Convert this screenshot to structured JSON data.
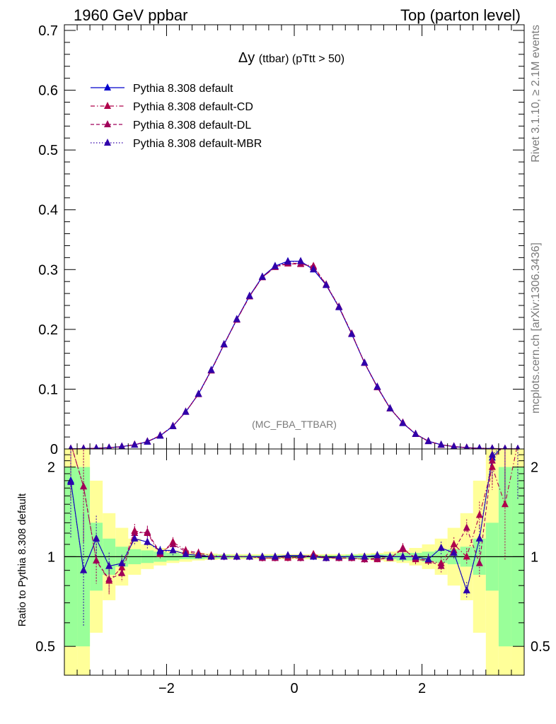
{
  "header": {
    "left": "1960 GeV ppbar",
    "right": "Top (parton level)"
  },
  "side": {
    "rivet": "Rivet 3.1.10, ≥ 2.1M events",
    "mcplots": "mcplots.cern.ch [arXiv:1306.3436]"
  },
  "watermark": "(MC_FBA_TTBAR)",
  "colors": {
    "default": "#0000cc",
    "cd": "#b0004a",
    "dl": "#a0005a",
    "mbr": "#3000aa",
    "band_inner": "#99ff99",
    "band_outer": "#ffff99"
  },
  "chart_data": [
    {
      "type": "line",
      "title": "Δy (ttbar) (pTtt > 50)",
      "xlabel": "",
      "ylabel": "",
      "xlim": [
        -3.6,
        3.6
      ],
      "ylim": [
        0,
        0.7
      ],
      "yticks": [
        "0",
        "0.1",
        "0.2",
        "0.3",
        "0.4",
        "0.5",
        "0.6",
        "0.7"
      ],
      "legend_position": "top-left",
      "x": [
        -3.5,
        -3.3,
        -3.1,
        -2.9,
        -2.7,
        -2.5,
        -2.3,
        -2.1,
        -1.9,
        -1.7,
        -1.5,
        -1.3,
        -1.1,
        -0.9,
        -0.7,
        -0.5,
        -0.3,
        -0.1,
        0.1,
        0.3,
        0.5,
        0.7,
        0.9,
        1.1,
        1.3,
        1.5,
        1.7,
        1.9,
        2.1,
        2.3,
        2.5,
        2.7,
        2.9,
        3.1,
        3.3,
        3.5
      ],
      "series": [
        {
          "name": "Pythia 8.308 default",
          "style": "solid",
          "values": [
            0.0003,
            0.0006,
            0.0012,
            0.0022,
            0.004,
            0.007,
            0.012,
            0.022,
            0.038,
            0.062,
            0.092,
            0.132,
            0.175,
            0.217,
            0.256,
            0.288,
            0.306,
            0.314,
            0.314,
            0.3,
            0.274,
            0.237,
            0.192,
            0.144,
            0.104,
            0.068,
            0.043,
            0.025,
            0.013,
            0.007,
            0.004,
            0.0022,
            0.0012,
            0.0006,
            0.0003,
            0.0001
          ]
        },
        {
          "name": "Pythia 8.308 default-CD",
          "style": "dashdot",
          "values": [
            0.0004,
            0.0007,
            0.0012,
            0.0021,
            0.0039,
            0.0072,
            0.0125,
            0.0225,
            0.0385,
            0.062,
            0.0915,
            0.131,
            0.1745,
            0.216,
            0.255,
            0.287,
            0.304,
            0.31,
            0.309,
            0.306,
            0.275,
            0.238,
            0.193,
            0.144,
            0.103,
            0.0675,
            0.044,
            0.025,
            0.013,
            0.0069,
            0.0041,
            0.0021,
            0.0011,
            0.0007,
            0.0004,
            0.0002
          ]
        },
        {
          "name": "Pythia 8.308 default-DL",
          "style": "dashed",
          "values": [
            0.0003,
            0.0006,
            0.0012,
            0.0021,
            0.0038,
            0.0071,
            0.0124,
            0.0224,
            0.0383,
            0.0622,
            0.0918,
            0.1315,
            0.1748,
            0.2165,
            0.2552,
            0.2872,
            0.3045,
            0.311,
            0.31,
            0.304,
            0.2745,
            0.2375,
            0.1925,
            0.1438,
            0.1035,
            0.0678,
            0.0438,
            0.0248,
            0.0128,
            0.0068,
            0.004,
            0.0021,
            0.0011,
            0.0007,
            0.0003,
            0.0001
          ]
        },
        {
          "name": "Pythia 8.308 default-MBR",
          "style": "dotted",
          "values": [
            0.0003,
            0.0005,
            0.0013,
            0.0021,
            0.0039,
            0.007,
            0.0122,
            0.0222,
            0.0382,
            0.0621,
            0.092,
            0.1318,
            0.1749,
            0.2168,
            0.2558,
            0.2876,
            0.3055,
            0.313,
            0.314,
            0.3005,
            0.2742,
            0.2372,
            0.1922,
            0.1441,
            0.1038,
            0.0679,
            0.0432,
            0.025,
            0.0129,
            0.0071,
            0.004,
            0.0017,
            0.0014,
            0.0007,
            0.0003,
            0.0001
          ]
        }
      ]
    },
    {
      "type": "line",
      "title": "",
      "xlabel": "",
      "ylabel": "Ratio to Pythia 8.308 default",
      "ylim": [
        0.4,
        2.3
      ],
      "scale": "log",
      "xticks": [
        "−2",
        "0",
        "2"
      ],
      "yticks": [
        "0.5",
        "1",
        "2"
      ],
      "series": [
        {
          "name": "Pythia 8.308 default",
          "values": [
            1.8,
            0.9,
            1.15,
            0.93,
            0.95,
            1.15,
            1.12,
            1.05,
            1.05,
            1.02,
            1.01,
            1.0,
            1.0,
            1.0,
            1.0,
            1.0,
            1.0,
            1.01,
            1.01,
            1.0,
            0.99,
            1.0,
            1.0,
            1.0,
            1.01,
            1.0,
            1.0,
            1.0,
            0.98,
            1.07,
            1.03,
            0.77,
            1.15,
            2.15,
            2.4,
            2.4
          ]
        },
        {
          "name": "Pythia 8.308 default-CD",
          "values": [
            2.4,
            1.72,
            0.97,
            0.83,
            0.92,
            1.22,
            1.2,
            1.02,
            1.12,
            1.05,
            1.03,
            1.01,
            1.0,
            1.0,
            1.0,
            0.99,
            0.99,
            0.99,
            0.99,
            1.02,
            0.99,
            0.99,
            0.99,
            0.98,
            0.98,
            0.99,
            1.07,
            0.98,
            0.97,
            0.95,
            1.1,
            1.0,
            1.38,
            2.0,
            1.5,
            2.4
          ]
        },
        {
          "name": "Pythia 8.308 default-DL",
          "values": [
            2.4,
            1.72,
            0.97,
            0.84,
            0.88,
            1.2,
            1.21,
            1.03,
            1.1,
            1.04,
            1.02,
            1.0,
            1.0,
            1.0,
            1.0,
            0.99,
            0.99,
            1.0,
            0.99,
            1.01,
            0.99,
            0.99,
            0.99,
            0.98,
            0.99,
            0.99,
            1.06,
            0.99,
            0.97,
            0.93,
            1.05,
            1.25,
            0.95,
            2.1,
            2.4,
            2.4
          ]
        },
        {
          "name": "Pythia 8.308 default-MBR",
          "values": [
            1.78,
            0.9,
            1.15,
            0.93,
            0.95,
            1.15,
            1.12,
            1.04,
            1.05,
            1.02,
            1.01,
            1.0,
            1.0,
            1.0,
            1.0,
            1.0,
            1.0,
            1.01,
            1.01,
            1.0,
            0.99,
            1.0,
            1.0,
            1.0,
            1.01,
            1.0,
            1.0,
            1.0,
            0.98,
            1.07,
            1.03,
            0.77,
            1.15,
            2.2,
            2.4,
            2.4
          ]
        }
      ],
      "band_inner": [
        2.0,
        2.0,
        1.3,
        1.15,
        1.08,
        1.06,
        1.05,
        1.04,
        1.03,
        1.02,
        1.02,
        1.015,
        1.015,
        1.01,
        1.01,
        1.01,
        1.01,
        1.01,
        1.01,
        1.01,
        1.01,
        1.01,
        1.015,
        1.015,
        1.02,
        1.02,
        1.03,
        1.03,
        1.04,
        1.05,
        1.06,
        1.08,
        1.15,
        1.3,
        2.0,
        2.0
      ],
      "band_outer": [
        2.5,
        2.5,
        1.8,
        1.4,
        1.25,
        1.15,
        1.1,
        1.07,
        1.05,
        1.04,
        1.03,
        1.025,
        1.02,
        1.02,
        1.02,
        1.02,
        1.02,
        1.02,
        1.02,
        1.02,
        1.02,
        1.02,
        1.02,
        1.025,
        1.03,
        1.04,
        1.05,
        1.07,
        1.1,
        1.15,
        1.25,
        1.4,
        1.8,
        2.5,
        2.5,
        2.5
      ]
    }
  ]
}
